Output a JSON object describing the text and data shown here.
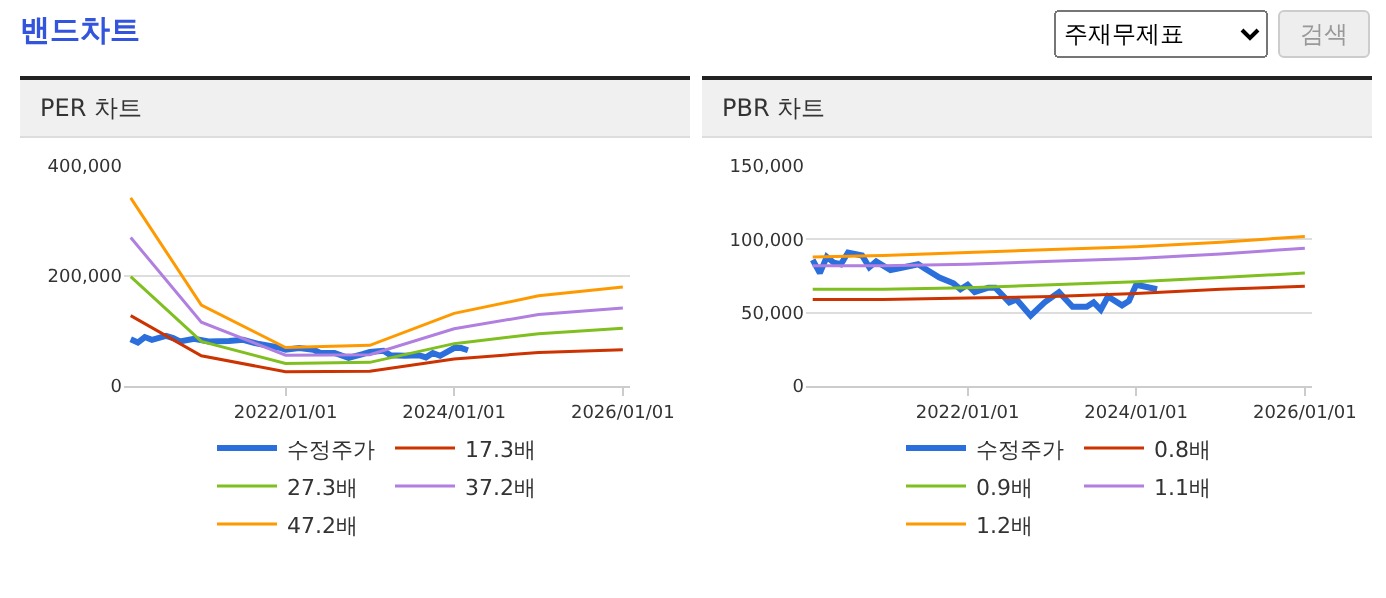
{
  "chart_data": [
    {
      "type": "other",
      "title": "밴드차트",
      "annotations": [
        "주재무제표",
        "검색"
      ]
    },
    {
      "type": "line",
      "title": "PER 차트",
      "xlim": [
        "2020-02-01",
        "2026-02-01"
      ],
      "xticks": [
        {
          "value": "2022-01-01",
          "label": "2022/01/01"
        },
        {
          "value": "2024-01-01",
          "label": "2024/01/01"
        },
        {
          "value": "2026-01-01",
          "label": "2026/01/01"
        }
      ],
      "ylim": [
        0,
        400000
      ],
      "yticks": [
        {
          "value": 0,
          "label": "0"
        },
        {
          "value": 200000,
          "label": "200,000"
        },
        {
          "value": 400000,
          "label": "400,000"
        }
      ],
      "grid": "y",
      "legend": "bottom",
      "marker": "none",
      "line_style": "solid",
      "series": [
        {
          "name": "수정주가",
          "color": "#2a6fdb",
          "x": [
            "2020-03",
            "2020-04",
            "2020-05",
            "2020-06",
            "2020-08",
            "2020-09",
            "2020-10",
            "2020-12",
            "2021-02",
            "2021-05",
            "2021-07",
            "2021-09",
            "2021-12",
            "2022-01",
            "2022-03",
            "2022-05",
            "2022-06",
            "2022-08",
            "2022-10",
            "2022-12",
            "2023-01",
            "2023-03",
            "2023-04",
            "2023-06",
            "2023-08",
            "2023-09",
            "2023-10",
            "2023-11",
            "2024-01",
            "2024-02",
            "2024-03"
          ],
          "values": [
            85000,
            79000,
            89000,
            84000,
            91000,
            87000,
            81000,
            86000,
            81000,
            82000,
            84000,
            77000,
            70000,
            66000,
            69000,
            66000,
            60000,
            60000,
            51000,
            58000,
            62000,
            64000,
            56000,
            55000,
            56000,
            52000,
            60000,
            55000,
            69000,
            69000,
            65000
          ]
        },
        {
          "name": "17.3배",
          "color": "#cc3300",
          "x": [
            "2020-03",
            "2021-01",
            "2022-01",
            "2023-01",
            "2024-01",
            "2025-01",
            "2026-01"
          ],
          "values": [
            128000,
            55000,
            26000,
            27000,
            49000,
            61000,
            66000
          ]
        },
        {
          "name": "27.3배",
          "color": "#7fbf1f",
          "x": [
            "2020-03",
            "2021-01",
            "2022-01",
            "2023-01",
            "2024-01",
            "2025-01",
            "2026-01"
          ],
          "values": [
            199000,
            81000,
            41000,
            43000,
            77000,
            95000,
            105000
          ]
        },
        {
          "name": "37.2배",
          "color": "#b07fe0",
          "x": [
            "2020-03",
            "2021-01",
            "2022-01",
            "2023-01",
            "2024-01",
            "2025-01",
            "2026-01"
          ],
          "values": [
            270000,
            116000,
            56000,
            57000,
            104000,
            130000,
            142000
          ]
        },
        {
          "name": "47.2배",
          "color": "#ff9900",
          "x": [
            "2020-03",
            "2021-01",
            "2022-01",
            "2023-01",
            "2024-01",
            "2025-01",
            "2026-01"
          ],
          "values": [
            342000,
            147000,
            70000,
            74000,
            132000,
            164000,
            180000
          ]
        }
      ]
    },
    {
      "type": "line",
      "title": "PBR 차트",
      "xlim": [
        "2020-02-01",
        "2026-02-01"
      ],
      "xticks": [
        {
          "value": "2022-01-01",
          "label": "2022/01/01"
        },
        {
          "value": "2024-01-01",
          "label": "2024/01/01"
        },
        {
          "value": "2026-01-01",
          "label": "2026/01/01"
        }
      ],
      "ylim": [
        0,
        150000
      ],
      "yticks": [
        {
          "value": 0,
          "label": "0"
        },
        {
          "value": 50000,
          "label": "50,000"
        },
        {
          "value": 100000,
          "label": "100,000"
        },
        {
          "value": 150000,
          "label": "150,000"
        }
      ],
      "grid": "y",
      "legend": "bottom",
      "marker": "none",
      "line_style": "solid",
      "series": [
        {
          "name": "수정주가",
          "color": "#2a6fdb",
          "x": [
            "2020-03",
            "2020-04",
            "2020-05",
            "2020-06",
            "2020-07",
            "2020-08",
            "2020-10",
            "2020-11",
            "2020-12",
            "2021-02",
            "2021-04",
            "2021-06",
            "2021-07",
            "2021-09",
            "2021-11",
            "2021-12",
            "2022-01",
            "2022-02",
            "2022-04",
            "2022-05",
            "2022-07",
            "2022-08",
            "2022-10",
            "2022-12",
            "2023-02",
            "2023-04",
            "2023-06",
            "2023-07",
            "2023-08",
            "2023-09",
            "2023-11",
            "2023-12",
            "2024-01",
            "2024-02",
            "2024-04"
          ],
          "values": [
            86000,
            77000,
            88000,
            84000,
            83000,
            91000,
            89000,
            81000,
            85000,
            79000,
            81000,
            83000,
            80000,
            74000,
            70000,
            66000,
            69000,
            64000,
            67000,
            67000,
            57000,
            59000,
            48000,
            57000,
            64000,
            54000,
            54000,
            57000,
            52000,
            61000,
            55000,
            58000,
            69000,
            68000,
            66000
          ]
        },
        {
          "name": "0.8배",
          "color": "#cc3300",
          "x": [
            "2020-03",
            "2021-01",
            "2022-01",
            "2023-01",
            "2024-01",
            "2025-01",
            "2026-01"
          ],
          "values": [
            59000,
            59000,
            60000,
            61000,
            63000,
            66000,
            68000
          ]
        },
        {
          "name": "0.9배",
          "color": "#7fbf1f",
          "x": [
            "2020-03",
            "2021-01",
            "2022-01",
            "2023-01",
            "2024-01",
            "2025-01",
            "2026-01"
          ],
          "values": [
            66000,
            66000,
            67000,
            69000,
            71000,
            74000,
            77000
          ]
        },
        {
          "name": "1.1배",
          "color": "#b07fe0",
          "x": [
            "2020-03",
            "2021-01",
            "2022-01",
            "2023-01",
            "2024-01",
            "2025-01",
            "2026-01"
          ],
          "values": [
            82000,
            82000,
            83000,
            85000,
            87000,
            90000,
            94000
          ]
        },
        {
          "name": "1.2배",
          "color": "#ff9900",
          "x": [
            "2020-03",
            "2021-01",
            "2022-01",
            "2023-01",
            "2024-01",
            "2025-01",
            "2026-01"
          ],
          "values": [
            88000,
            89000,
            91000,
            93000,
            95000,
            98000,
            102000
          ]
        }
      ]
    }
  ]
}
